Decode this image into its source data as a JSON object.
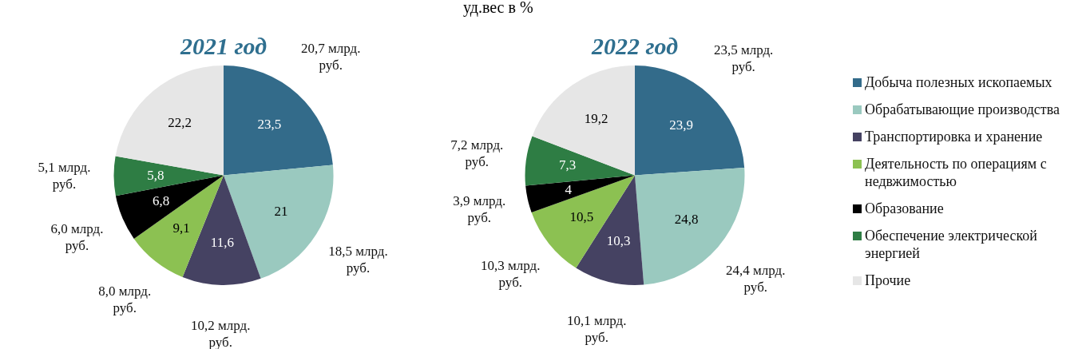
{
  "chart_data": [
    {
      "type": "pie",
      "title": "2021 год",
      "categories": [
        null,
        null,
        null,
        null,
        null,
        null,
        null
      ],
      "values": [
        23.5,
        21,
        11.6,
        9.1,
        6.8,
        5.8,
        22.2
      ],
      "value_labels": [
        "23,5",
        "21",
        "11,6",
        "9,1",
        "6,8",
        "5,8",
        "22,2"
      ],
      "colors": [
        "#336b8a",
        "#9ac9bf",
        "#454262",
        "#8cc152",
        "#000000",
        "#2e7d44",
        "#e6e6e6"
      ],
      "legend": false,
      "annotations": [
        "уд.вес в %",
        {
          "text": "20,7 млрд. руб."
        },
        {
          "text": "18,5 млрд. руб."
        },
        {
          "text": "10,2 млрд. руб."
        },
        {
          "text": "8,0 млрд. руб."
        },
        {
          "text": "6,0 млрд. руб."
        },
        {
          "text": "5,1 млрд. руб."
        }
      ]
    },
    {
      "type": "pie",
      "title": "2022 год",
      "categories": [
        "Добыча полезных ископаемых",
        "Обрабатывающие производства",
        "Транспортировка и хранение",
        "Деятельность по операциям с недвжимостью",
        "Образование",
        "Обеспечение электрической энергией",
        "Прочие"
      ],
      "values": [
        23.9,
        24.8,
        10.3,
        10.5,
        4,
        7.3,
        19.2
      ],
      "value_labels": [
        "23,9",
        "24,8",
        "10,3",
        "10,5",
        "4",
        "7,3",
        "19,2"
      ],
      "colors": [
        "#336b8a",
        "#9ac9bf",
        "#454262",
        "#8cc152",
        "#000000",
        "#2e7d44",
        "#e6e6e6"
      ],
      "legend": "right",
      "annotations": [
        {
          "text": "23,5 млрд. руб.",
          "x": "Добыча полезных ископаемых"
        },
        {
          "text": "24,4 млрд. руб.",
          "x": "Обрабатывающие производства"
        },
        {
          "text": "10,1 млрд. руб.",
          "x": "Транспортировка и хранение"
        },
        {
          "text": "10,3 млрд. руб.",
          "x": "Деятельность по операциям с недвжимостью"
        },
        {
          "text": "3,9 млрд. руб.",
          "x": "Образование"
        },
        {
          "text": "7,2 млрд. руб.",
          "x": "Обеспечение электрической энергией"
        }
      ]
    }
  ]
}
